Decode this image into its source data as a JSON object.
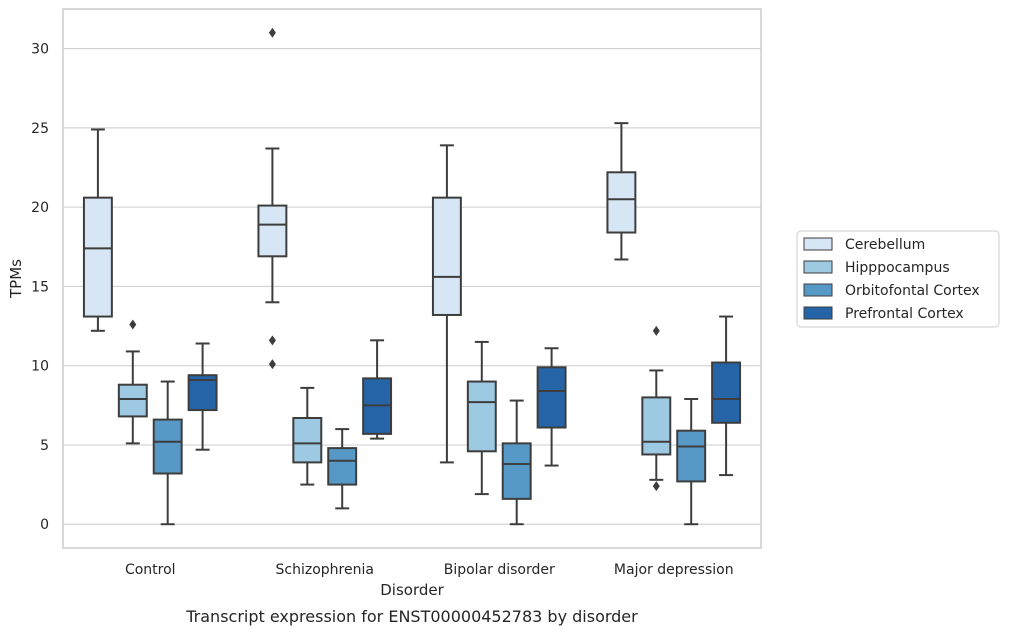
{
  "chart_data": {
    "type": "box",
    "xlabel": "Disorder",
    "ylabel": "TPMs",
    "caption": "Transcript expression for ENST00000452783 by disorder",
    "ylim": [
      -1.5,
      32.5
    ],
    "yticks": [
      0,
      5,
      10,
      15,
      20,
      25,
      30
    ],
    "grid": true,
    "legend_position": "right",
    "categories": [
      "Control",
      "Schizophrenia",
      "Bipolar disorder",
      "Major depression"
    ],
    "series": [
      {
        "name": "Cerebellum",
        "color": "#d6e6f4",
        "boxes": [
          {
            "whislo": 12.2,
            "q1": 13.1,
            "med": 17.4,
            "q3": 20.6,
            "whishi": 24.9,
            "fliers": []
          },
          {
            "whislo": 14.0,
            "q1": 16.9,
            "med": 18.9,
            "q3": 20.1,
            "whishi": 23.7,
            "fliers": [
              31.0,
              11.6,
              10.1
            ]
          },
          {
            "whislo": 3.9,
            "q1": 13.2,
            "med": 15.6,
            "q3": 20.6,
            "whishi": 23.9,
            "fliers": []
          },
          {
            "whislo": 16.7,
            "q1": 18.4,
            "med": 20.5,
            "q3": 22.2,
            "whishi": 25.3,
            "fliers": []
          }
        ]
      },
      {
        "name": "Hipppocampus",
        "color": "#9ec9e2",
        "boxes": [
          {
            "whislo": 5.1,
            "q1": 6.8,
            "med": 7.9,
            "q3": 8.8,
            "whishi": 10.9,
            "fliers": [
              12.6
            ]
          },
          {
            "whislo": 2.5,
            "q1": 3.9,
            "med": 5.1,
            "q3": 6.7,
            "whishi": 8.6,
            "fliers": []
          },
          {
            "whislo": 1.9,
            "q1": 4.6,
            "med": 7.7,
            "q3": 9.0,
            "whishi": 11.5,
            "fliers": []
          },
          {
            "whislo": 2.8,
            "q1": 4.4,
            "med": 5.2,
            "q3": 8.0,
            "whishi": 9.7,
            "fliers": [
              12.2,
              2.4
            ]
          }
        ]
      },
      {
        "name": "Orbitofontal Cortex",
        "color": "#5799c6",
        "boxes": [
          {
            "whislo": 0.0,
            "q1": 3.2,
            "med": 5.2,
            "q3": 6.6,
            "whishi": 9.0,
            "fliers": []
          },
          {
            "whislo": 1.0,
            "q1": 2.5,
            "med": 4.0,
            "q3": 4.8,
            "whishi": 6.0,
            "fliers": []
          },
          {
            "whislo": 0.0,
            "q1": 1.6,
            "med": 3.8,
            "q3": 5.1,
            "whishi": 7.8,
            "fliers": []
          },
          {
            "whislo": 0.0,
            "q1": 2.7,
            "med": 4.9,
            "q3": 5.9,
            "whishi": 7.9,
            "fliers": []
          }
        ]
      },
      {
        "name": "Prefrontal Cortex",
        "color": "#2565a7",
        "boxes": [
          {
            "whislo": 4.7,
            "q1": 7.2,
            "med": 9.1,
            "q3": 9.4,
            "whishi": 11.4,
            "fliers": []
          },
          {
            "whislo": 5.4,
            "q1": 5.7,
            "med": 7.5,
            "q3": 9.2,
            "whishi": 11.6,
            "fliers": []
          },
          {
            "whislo": 3.7,
            "q1": 6.1,
            "med": 8.4,
            "q3": 9.9,
            "whishi": 11.1,
            "fliers": []
          },
          {
            "whislo": 3.1,
            "q1": 6.4,
            "med": 7.9,
            "q3": 10.2,
            "whishi": 13.1,
            "fliers": []
          }
        ]
      }
    ]
  }
}
